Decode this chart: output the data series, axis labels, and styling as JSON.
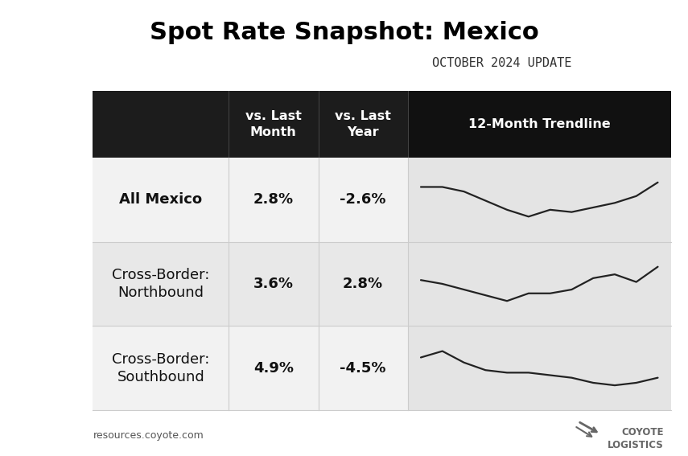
{
  "title": "Spot Rate Snapshot: Mexico",
  "subtitle": "OCTOBER 2024 UPDATE",
  "footer_left": "resources.coyote.com",
  "col_headers": [
    "vs. Last\nMonth",
    "vs. Last\nYear",
    "12-Month Trendline"
  ],
  "rows": [
    {
      "label": "All Mexico",
      "label_bold": true,
      "vs_month": "2.8%",
      "vs_year": "-2.6%",
      "trend": [
        5.2,
        5.2,
        5.1,
        4.9,
        4.7,
        4.55,
        4.7,
        4.65,
        4.75,
        4.85,
        5.0,
        5.3
      ]
    },
    {
      "label": "Cross-Border:\nNorthbound",
      "label_bold": false,
      "vs_month": "3.6%",
      "vs_year": "2.8%",
      "trend": [
        5.0,
        4.9,
        4.75,
        4.6,
        4.45,
        4.65,
        4.65,
        4.75,
        5.05,
        5.15,
        4.95,
        5.35
      ]
    },
    {
      "label": "Cross-Border:\nSouthbound",
      "label_bold": false,
      "vs_month": "4.9%",
      "vs_year": "-4.5%",
      "trend": [
        4.75,
        5.0,
        4.55,
        4.25,
        4.15,
        4.15,
        4.05,
        3.95,
        3.75,
        3.65,
        3.75,
        3.95
      ]
    }
  ],
  "header_bg": "#1c1c1c",
  "header_trendline_bg": "#111111",
  "header_text_color": "#ffffff",
  "row_bg_light": "#f2f2f2",
  "row_bg_dark": "#e8e8e8",
  "trendline_row_bg": "#e8e8e8",
  "line_color": "#222222",
  "bg_color": "#ffffff",
  "divider_color": "#cccccc",
  "title_fontsize": 22,
  "subtitle_fontsize": 11,
  "header_fontsize": 11.5,
  "cell_fontsize": 13,
  "footer_fontsize": 9
}
